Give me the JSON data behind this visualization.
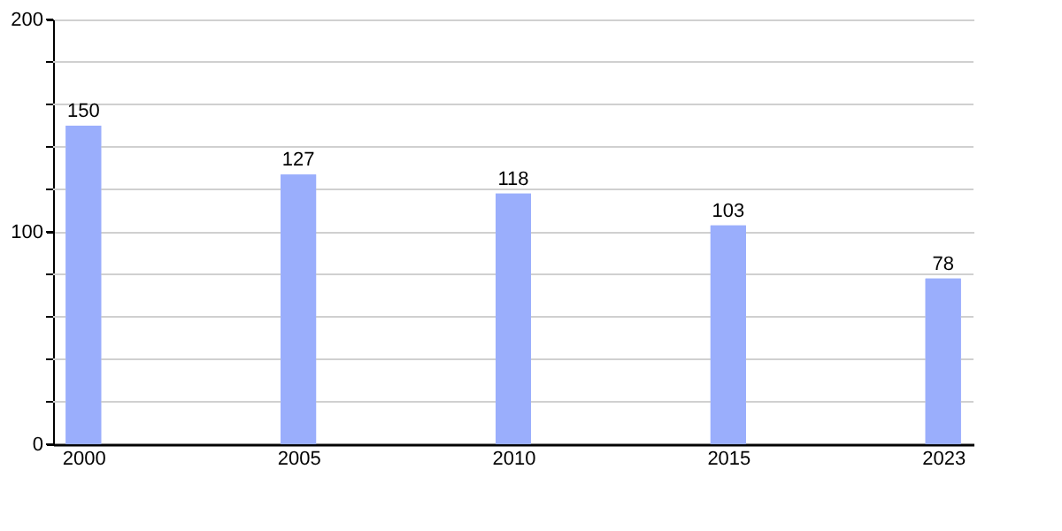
{
  "chart_data": {
    "type": "bar",
    "categories": [
      "2000",
      "2005",
      "2010",
      "2015",
      "2023"
    ],
    "values": [
      150,
      127,
      118,
      103,
      78
    ],
    "color": "#9aaefc",
    "ylim": [
      0,
      200
    ],
    "yticks": [
      0,
      {
        "value": 20,
        "label": null
      },
      {
        "value": 40,
        "label": null
      },
      {
        "value": 60,
        "label": null
      },
      {
        "value": 80,
        "label": null
      },
      100,
      {
        "value": 120,
        "label": null
      },
      {
        "value": 140,
        "label": null
      },
      {
        "value": 160,
        "label": null
      },
      {
        "value": 180,
        "label": null
      },
      200
    ],
    "grid": true,
    "data_labels": true
  }
}
